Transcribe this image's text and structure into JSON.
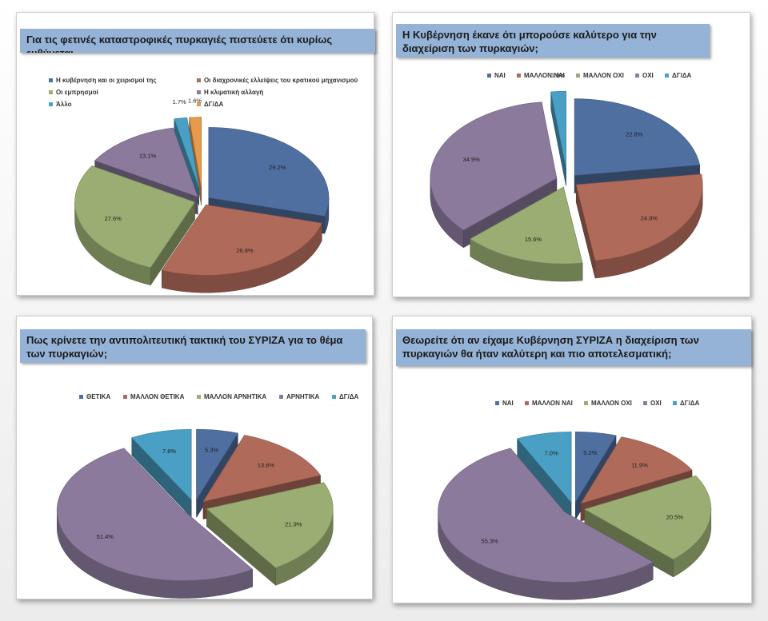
{
  "colors": {
    "blue": "#4f6fa0",
    "red": "#b06a5a",
    "green": "#9aad73",
    "purple": "#8b7a9c",
    "teal": "#4a9fc4",
    "orange": "#e69a4c"
  },
  "chart_data": [
    {
      "type": "pie",
      "title": "Για τις φετινές καταστροφικές πυρκαγιές πιστεύετε ότι κυρίως ευθύνεται…",
      "legend_position": "top",
      "legend_columns": 2,
      "categories": [
        "Η κυβέρνηση και οι χειρισμοί της",
        "Οι διαχρονικές ελλείψεις του κρατικού μηχανισμού",
        "Οι εμπρησμοί",
        "Η κλιματική αλλαγή",
        "Άλλο",
        "ΔΓ/ΔΑ"
      ],
      "values": [
        29.2,
        26.8,
        27.6,
        13.1,
        1.7,
        1.6
      ],
      "labels": [
        "29.2%",
        "26.8%",
        "27.6%",
        "13.1%",
        "1.7%",
        "1.6%"
      ],
      "colors": [
        "#4f6fa0",
        "#b06a5a",
        "#9aad73",
        "#8b7a9c",
        "#4a9fc4",
        "#e69a4c"
      ]
    },
    {
      "type": "pie",
      "title": "Η Κυβέρνηση έκανε ότι μπορούσε καλύτερο για την διαχείριση των πυρκαγιών;",
      "legend_position": "top",
      "legend_columns": 5,
      "categories": [
        "ΝΑΙ",
        "ΜΑΛΛΟΝ ΝΑΙ",
        "ΜΑΛΛΟΝ ΟΧΙ",
        "ΟΧΙ",
        "ΔΓ/ΔΑ"
      ],
      "values": [
        22.8,
        24.8,
        15.6,
        34.9,
        1.9
      ],
      "labels": [
        "22.8%",
        "24.8%",
        "15.6%",
        "34.9%",
        "1.9%"
      ],
      "colors": [
        "#4f6fa0",
        "#b06a5a",
        "#9aad73",
        "#8b7a9c",
        "#4a9fc4"
      ]
    },
    {
      "type": "pie",
      "title": "Πως κρίνετε την αντιπολιτευτική τακτική του ΣΥΡΙΖΑ για το θέμα των πυρκαγιών;",
      "legend_position": "top",
      "legend_columns": 5,
      "categories": [
        "ΘΕΤΙΚΑ",
        "ΜΑΛΛΟΝ ΘΕΤΙΚΑ",
        "ΜΑΛΛΟΝ ΑΡΝΗΤΙΚΑ",
        "ΑΡΝΗΤΙΚΑ",
        "ΔΓ/ΔΑ"
      ],
      "values": [
        5.3,
        13.6,
        21.9,
        51.4,
        7.8
      ],
      "labels": [
        "5.3%",
        "13.6%",
        "21.9%",
        "51.4%",
        "7.8%"
      ],
      "colors": [
        "#4f6fa0",
        "#b06a5a",
        "#9aad73",
        "#8b7a9c",
        "#4a9fc4"
      ]
    },
    {
      "type": "pie",
      "title": "Θεωρείτε ότι αν είχαμε Κυβέρνηση ΣΥΡΙΖΑ η διαχείριση των πυρκαγιών θα ήταν καλύτερη και πιο αποτελεσματική;",
      "legend_position": "top",
      "legend_columns": 5,
      "categories": [
        "ΝΑΙ",
        "ΜΑΛΛΟΝ ΝΑΙ",
        "ΜΑΛΛΟΝ ΟΧΙ",
        "ΟΧΙ",
        "ΔΓ/ΔΑ"
      ],
      "values": [
        5.2,
        11.9,
        20.5,
        55.3,
        7.0
      ],
      "labels": [
        "5.2%",
        "11.9%",
        "20.5%",
        "55.3%",
        "7.0%"
      ],
      "colors": [
        "#4f6fa0",
        "#b06a5a",
        "#9aad73",
        "#8b7a9c",
        "#4a9fc4"
      ]
    }
  ]
}
